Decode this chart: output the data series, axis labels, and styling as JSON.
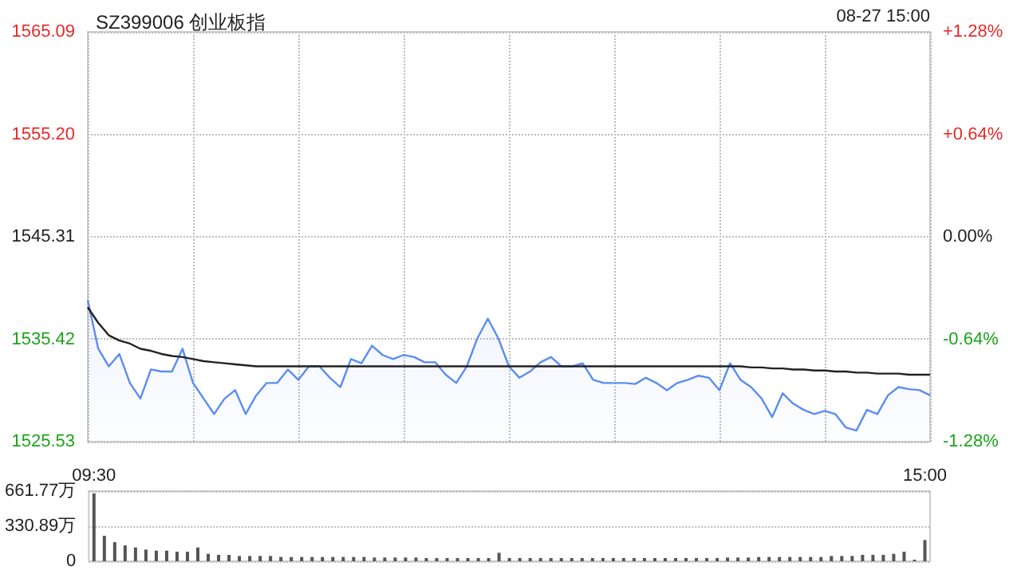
{
  "chart_data": [
    {
      "type": "line",
      "title": "SZ399006 创业板指",
      "annotations": [
        "08-27 15:00"
      ],
      "categories": [
        null,
        null,
        null,
        null,
        null,
        null,
        null,
        null,
        null,
        null,
        null,
        null,
        null,
        null,
        null,
        null,
        null,
        null,
        null,
        null,
        null,
        null,
        null,
        null,
        null,
        null,
        null,
        null,
        null,
        null,
        null,
        null,
        null,
        null,
        null,
        null,
        null,
        null,
        null,
        null,
        null,
        null,
        null,
        null,
        null,
        null,
        null,
        null,
        null,
        null,
        null,
        null,
        null,
        null,
        null,
        null,
        null,
        null,
        null,
        null,
        null,
        null,
        null,
        null,
        null,
        null,
        null,
        null,
        null,
        null,
        null,
        null,
        null,
        null,
        null,
        null,
        null,
        null,
        null,
        null,
        null
      ],
      "series": [
        {
          "type": "area",
          "color": "#5b8def",
          "values": [
            1539.2,
            1534.5,
            1532.8,
            1534.0,
            1531.2,
            1529.7,
            1532.5,
            1532.3,
            1532.3,
            1534.5,
            1531.2,
            1529.7,
            1528.2,
            1529.7,
            1530.5,
            1528.2,
            1530.0,
            1531.2,
            1531.2,
            1532.5,
            1531.5,
            1532.8,
            1532.8,
            1531.7,
            1530.8,
            1533.5,
            1533.1,
            1534.8,
            1533.9,
            1533.5,
            1533.9,
            1533.7,
            1533.2,
            1533.2,
            1532.0,
            1531.2,
            1532.8,
            1535.5,
            1537.4,
            1535.5,
            1532.8,
            1531.7,
            1532.3,
            1533.2,
            1533.7,
            1532.8,
            1532.8,
            1533.1,
            1531.5,
            1531.2,
            1531.2,
            1531.2,
            1531.1,
            1531.7,
            1531.2,
            1530.5,
            1531.2,
            1531.5,
            1531.9,
            1531.7,
            1530.5,
            1533.1,
            1531.5,
            1530.8,
            1529.7,
            1527.9,
            1530.2,
            1529.2,
            1528.6,
            1528.2,
            1528.5,
            1528.2,
            1526.9,
            1526.6,
            1528.6,
            1528.2,
            1530.0,
            1530.8,
            1530.6,
            1530.5,
            1530.0
          ]
        },
        {
          "color": "#222222",
          "values": [
            1538.5,
            1537.0,
            1535.8,
            1535.3,
            1535.0,
            1534.5,
            1534.3,
            1534.0,
            1533.8,
            1533.7,
            1533.5,
            1533.3,
            1533.2,
            1533.1,
            1533.0,
            1532.9,
            1532.8,
            1532.8,
            1532.8,
            1532.8,
            1532.8,
            1532.8,
            1532.8,
            1532.8,
            1532.8,
            1532.8,
            1532.8,
            1532.8,
            1532.8,
            1532.8,
            1532.8,
            1532.8,
            1532.8,
            1532.8,
            1532.8,
            1532.8,
            1532.8,
            1532.8,
            1532.8,
            1532.8,
            1532.8,
            1532.8,
            1532.8,
            1532.8,
            1532.8,
            1532.8,
            1532.8,
            1532.8,
            1532.8,
            1532.8,
            1532.8,
            1532.8,
            1532.8,
            1532.8,
            1532.8,
            1532.8,
            1532.8,
            1532.8,
            1532.8,
            1532.8,
            1532.8,
            1532.8,
            1532.8,
            1532.7,
            1532.7,
            1532.6,
            1532.6,
            1532.5,
            1532.5,
            1532.4,
            1532.4,
            1532.3,
            1532.3,
            1532.2,
            1532.2,
            1532.1,
            1532.1,
            1532.1,
            1532.0,
            1532.0,
            1532.0
          ]
        }
      ],
      "ylim": [
        1525.53,
        1565.09
      ],
      "yticks": [
        1525.53,
        1535.42,
        1545.31,
        {
          "value": 1555.2,
          "label": "1555.20"
        },
        1565.09
      ],
      "y2lim": [
        -1.28,
        1.28
      ],
      "y2ticks": [
        {
          "value": -1.28,
          "label": "-1.28%"
        },
        {
          "value": -0.64,
          "label": "-0.64%"
        },
        {
          "value": 0,
          "label": "0.00%"
        },
        {
          "value": 0.64,
          "label": "+0.64%"
        },
        {
          "value": 1.28,
          "label": "+1.28%"
        }
      ],
      "tick_labels": "y",
      "grid": true,
      "line_style": "solid"
    },
    {
      "type": "bar",
      "color": "#555555",
      "categories": [
        "09:30",
        null,
        null,
        null,
        null,
        null,
        null,
        null,
        null,
        null,
        null,
        null,
        null,
        null,
        null,
        null,
        null,
        null,
        null,
        null,
        null,
        null,
        null,
        null,
        null,
        null,
        null,
        null,
        null,
        null,
        null,
        null,
        null,
        null,
        null,
        null,
        null,
        null,
        null,
        null,
        null,
        null,
        null,
        null,
        null,
        null,
        null,
        null,
        null,
        null,
        null,
        null,
        null,
        null,
        null,
        null,
        null,
        null,
        null,
        null,
        null,
        null,
        null,
        null,
        null,
        null,
        null,
        null,
        null,
        null,
        null,
        null,
        null,
        null,
        null,
        null,
        null,
        null,
        null,
        null,
        "15:00"
      ],
      "values": [
        640,
        240,
        180,
        150,
        130,
        110,
        100,
        100,
        90,
        90,
        130,
        70,
        60,
        60,
        50,
        50,
        50,
        50,
        40,
        40,
        40,
        40,
        40,
        40,
        40,
        40,
        40,
        35,
        35,
        35,
        35,
        35,
        30,
        30,
        30,
        30,
        30,
        30,
        30,
        80,
        30,
        30,
        30,
        30,
        30,
        30,
        30,
        30,
        30,
        30,
        30,
        30,
        30,
        30,
        30,
        30,
        30,
        30,
        30,
        30,
        30,
        35,
        35,
        35,
        40,
        40,
        40,
        40,
        40,
        40,
        40,
        50,
        50,
        50,
        60,
        60,
        60,
        70,
        90,
        15,
        200
      ],
      "ylim": [
        0,
        661.77
      ],
      "yticks": [
        0,
        {
          "value": 330.89,
          "label": "330.89万"
        },
        {
          "value": 661.77,
          "label": "661.77万"
        }
      ],
      "grid": "y"
    }
  ]
}
